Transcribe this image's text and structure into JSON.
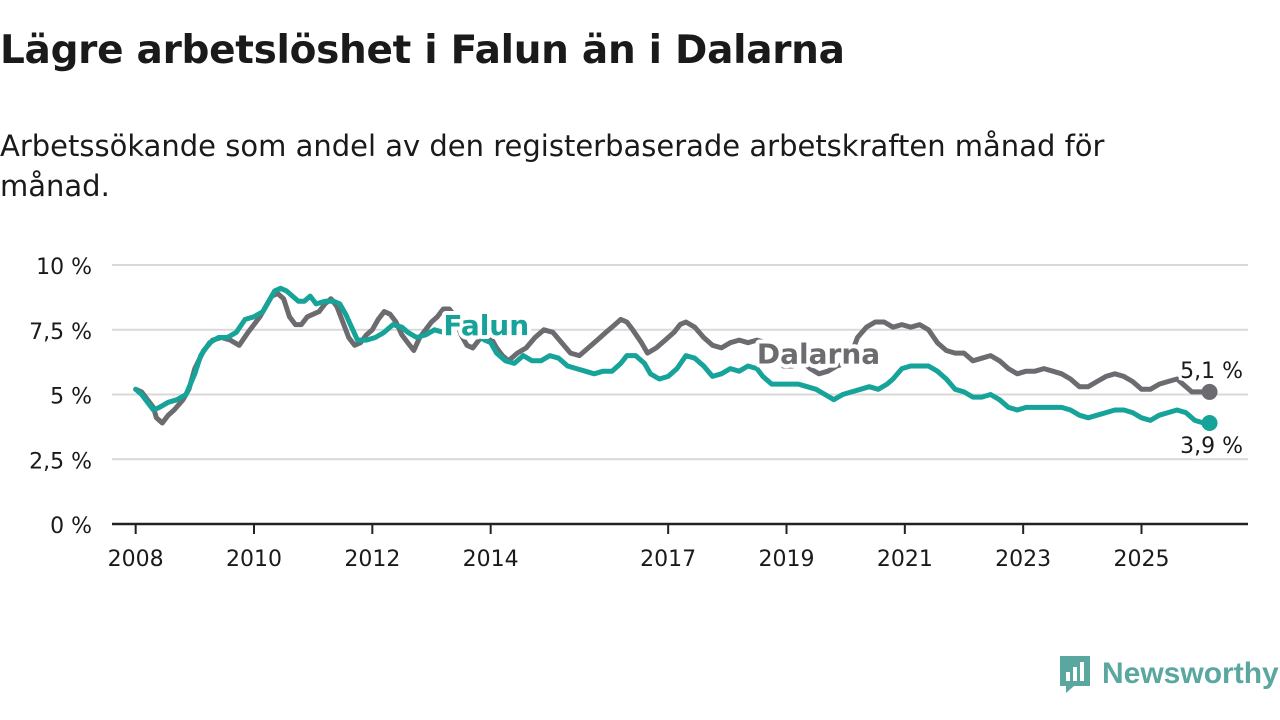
{
  "title": "Lägre arbetslöshet i Falun än i Dalarna",
  "subtitle": "Arbetssökande som andel av den registerbaserade arbetskraften månad för månad.",
  "brand": {
    "name": "Newsworthy",
    "icon": "newsworthy-logo-icon"
  },
  "colors": {
    "falun": "#16a399",
    "dalarna": "#6b6b70",
    "grid": "#d9d9d9",
    "axis": "#222222",
    "text": "#1a1a1a"
  },
  "chart_data": {
    "type": "line",
    "ylim": [
      0,
      10
    ],
    "xlim": [
      2007.6,
      2026.8
    ],
    "y_ticks": [
      {
        "value": 0,
        "label": "0 %"
      },
      {
        "value": 2.5,
        "label": "2,5 %"
      },
      {
        "value": 5,
        "label": "5 %"
      },
      {
        "value": 7.5,
        "label": "7,5 %"
      },
      {
        "value": 10,
        "label": "10 %"
      }
    ],
    "x_ticks": [
      {
        "value": 2008,
        "label": "2008"
      },
      {
        "value": 2010,
        "label": "2010"
      },
      {
        "value": 2012,
        "label": "2012"
      },
      {
        "value": 2014,
        "label": "2014"
      },
      {
        "value": 2017,
        "label": "2017"
      },
      {
        "value": 2019,
        "label": "2019"
      },
      {
        "value": 2021,
        "label": "2021"
      },
      {
        "value": 2023,
        "label": "2023"
      },
      {
        "value": 2025,
        "label": "2025"
      }
    ],
    "grid": true,
    "series": [
      {
        "name": "Dalarna",
        "color": "#6b6b70",
        "end_label": "5,1 %",
        "label_pos": [
          2018.5,
          6.2
        ],
        "points": [
          [
            2008.0,
            5.2
          ],
          [
            2008.1,
            5.1
          ],
          [
            2008.2,
            4.8
          ],
          [
            2008.3,
            4.5
          ],
          [
            2008.35,
            4.1
          ],
          [
            2008.45,
            3.9
          ],
          [
            2008.55,
            4.2
          ],
          [
            2008.65,
            4.4
          ],
          [
            2008.8,
            4.8
          ],
          [
            2008.9,
            5.2
          ],
          [
            2009.0,
            6.0
          ],
          [
            2009.15,
            6.7
          ],
          [
            2009.3,
            7.1
          ],
          [
            2009.45,
            7.2
          ],
          [
            2009.6,
            7.1
          ],
          [
            2009.75,
            6.9
          ],
          [
            2009.9,
            7.4
          ],
          [
            2010.0,
            7.7
          ],
          [
            2010.1,
            8.0
          ],
          [
            2010.2,
            8.4
          ],
          [
            2010.3,
            8.8
          ],
          [
            2010.4,
            8.9
          ],
          [
            2010.5,
            8.7
          ],
          [
            2010.6,
            8.0
          ],
          [
            2010.7,
            7.7
          ],
          [
            2010.8,
            7.7
          ],
          [
            2010.9,
            8.0
          ],
          [
            2011.0,
            8.1
          ],
          [
            2011.1,
            8.2
          ],
          [
            2011.2,
            8.5
          ],
          [
            2011.3,
            8.7
          ],
          [
            2011.4,
            8.4
          ],
          [
            2011.5,
            7.8
          ],
          [
            2011.6,
            7.2
          ],
          [
            2011.7,
            6.9
          ],
          [
            2011.8,
            7.0
          ],
          [
            2011.9,
            7.3
          ],
          [
            2012.0,
            7.5
          ],
          [
            2012.1,
            7.9
          ],
          [
            2012.2,
            8.2
          ],
          [
            2012.3,
            8.1
          ],
          [
            2012.4,
            7.8
          ],
          [
            2012.5,
            7.3
          ],
          [
            2012.6,
            7.0
          ],
          [
            2012.7,
            6.7
          ],
          [
            2012.8,
            7.2
          ],
          [
            2012.9,
            7.5
          ],
          [
            2013.0,
            7.8
          ],
          [
            2013.1,
            8.0
          ],
          [
            2013.2,
            8.3
          ],
          [
            2013.3,
            8.3
          ],
          [
            2013.4,
            8.0
          ],
          [
            2013.5,
            7.3
          ],
          [
            2013.6,
            6.9
          ],
          [
            2013.7,
            6.8
          ],
          [
            2013.8,
            7.1
          ],
          [
            2013.9,
            7.3
          ],
          [
            2014.0,
            7.2
          ],
          [
            2014.1,
            6.8
          ],
          [
            2014.2,
            6.5
          ],
          [
            2014.3,
            6.3
          ],
          [
            2014.45,
            6.6
          ],
          [
            2014.6,
            6.8
          ],
          [
            2014.75,
            7.2
          ],
          [
            2014.9,
            7.5
          ],
          [
            2015.05,
            7.4
          ],
          [
            2015.2,
            7.0
          ],
          [
            2015.35,
            6.6
          ],
          [
            2015.5,
            6.5
          ],
          [
            2015.65,
            6.8
          ],
          [
            2015.8,
            7.1
          ],
          [
            2015.95,
            7.4
          ],
          [
            2016.1,
            7.7
          ],
          [
            2016.2,
            7.9
          ],
          [
            2016.3,
            7.8
          ],
          [
            2016.4,
            7.5
          ],
          [
            2016.55,
            7.0
          ],
          [
            2016.65,
            6.6
          ],
          [
            2016.8,
            6.8
          ],
          [
            2016.95,
            7.1
          ],
          [
            2017.1,
            7.4
          ],
          [
            2017.2,
            7.7
          ],
          [
            2017.3,
            7.8
          ],
          [
            2017.45,
            7.6
          ],
          [
            2017.6,
            7.2
          ],
          [
            2017.75,
            6.9
          ],
          [
            2017.9,
            6.8
          ],
          [
            2018.05,
            7.0
          ],
          [
            2018.2,
            7.1
          ],
          [
            2018.35,
            7.0
          ],
          [
            2018.5,
            7.1
          ],
          [
            2018.65,
            7.0
          ],
          [
            2018.8,
            6.6
          ],
          [
            2018.95,
            6.1
          ],
          [
            2019.1,
            6.1
          ],
          [
            2019.25,
            6.3
          ],
          [
            2019.4,
            6.0
          ],
          [
            2019.55,
            5.8
          ],
          [
            2019.7,
            5.9
          ],
          [
            2019.85,
            6.1
          ],
          [
            2020.0,
            6.2
          ],
          [
            2020.1,
            6.6
          ],
          [
            2020.2,
            7.2
          ],
          [
            2020.35,
            7.6
          ],
          [
            2020.5,
            7.8
          ],
          [
            2020.65,
            7.8
          ],
          [
            2020.8,
            7.6
          ],
          [
            2020.95,
            7.7
          ],
          [
            2021.1,
            7.6
          ],
          [
            2021.25,
            7.7
          ],
          [
            2021.4,
            7.5
          ],
          [
            2021.55,
            7.0
          ],
          [
            2021.7,
            6.7
          ],
          [
            2021.85,
            6.6
          ],
          [
            2022.0,
            6.6
          ],
          [
            2022.15,
            6.3
          ],
          [
            2022.3,
            6.4
          ],
          [
            2022.45,
            6.5
          ],
          [
            2022.6,
            6.3
          ],
          [
            2022.75,
            6.0
          ],
          [
            2022.9,
            5.8
          ],
          [
            2023.05,
            5.9
          ],
          [
            2023.2,
            5.9
          ],
          [
            2023.35,
            6.0
          ],
          [
            2023.5,
            5.9
          ],
          [
            2023.65,
            5.8
          ],
          [
            2023.8,
            5.6
          ],
          [
            2023.95,
            5.3
          ],
          [
            2024.1,
            5.3
          ],
          [
            2024.25,
            5.5
          ],
          [
            2024.4,
            5.7
          ],
          [
            2024.55,
            5.8
          ],
          [
            2024.7,
            5.7
          ],
          [
            2024.85,
            5.5
          ],
          [
            2025.0,
            5.2
          ],
          [
            2025.15,
            5.2
          ],
          [
            2025.3,
            5.4
          ],
          [
            2025.45,
            5.5
          ],
          [
            2025.6,
            5.6
          ],
          [
            2025.75,
            5.3
          ],
          [
            2025.85,
            5.1
          ],
          [
            2026.0,
            5.1
          ],
          [
            2026.15,
            5.1
          ]
        ]
      },
      {
        "name": "Falun",
        "color": "#16a399",
        "end_label": "3,9 %",
        "label_pos": [
          2013.2,
          7.3
        ],
        "points": [
          [
            2008.0,
            5.2
          ],
          [
            2008.1,
            5.0
          ],
          [
            2008.2,
            4.7
          ],
          [
            2008.3,
            4.4
          ],
          [
            2008.4,
            4.5
          ],
          [
            2008.55,
            4.7
          ],
          [
            2008.7,
            4.8
          ],
          [
            2008.85,
            5.0
          ],
          [
            2009.0,
            5.8
          ],
          [
            2009.1,
            6.5
          ],
          [
            2009.25,
            7.0
          ],
          [
            2009.4,
            7.2
          ],
          [
            2009.55,
            7.2
          ],
          [
            2009.7,
            7.4
          ],
          [
            2009.85,
            7.9
          ],
          [
            2010.0,
            8.0
          ],
          [
            2010.15,
            8.2
          ],
          [
            2010.25,
            8.6
          ],
          [
            2010.35,
            9.0
          ],
          [
            2010.45,
            9.1
          ],
          [
            2010.55,
            9.0
          ],
          [
            2010.65,
            8.8
          ],
          [
            2010.75,
            8.6
          ],
          [
            2010.85,
            8.6
          ],
          [
            2010.95,
            8.8
          ],
          [
            2011.05,
            8.5
          ],
          [
            2011.2,
            8.6
          ],
          [
            2011.35,
            8.6
          ],
          [
            2011.45,
            8.5
          ],
          [
            2011.55,
            8.1
          ],
          [
            2011.65,
            7.6
          ],
          [
            2011.75,
            7.1
          ],
          [
            2011.9,
            7.1
          ],
          [
            2012.05,
            7.2
          ],
          [
            2012.2,
            7.4
          ],
          [
            2012.35,
            7.7
          ],
          [
            2012.5,
            7.6
          ],
          [
            2012.6,
            7.4
          ],
          [
            2012.75,
            7.2
          ],
          [
            2012.9,
            7.3
          ],
          [
            2013.05,
            7.5
          ],
          [
            2013.2,
            7.4
          ],
          [
            2013.35,
            7.6
          ],
          [
            2013.5,
            7.8
          ],
          [
            2013.6,
            7.6
          ],
          [
            2013.75,
            7.3
          ],
          [
            2013.9,
            7.1
          ],
          [
            2014.0,
            7.0
          ],
          [
            2014.1,
            6.6
          ],
          [
            2014.25,
            6.3
          ],
          [
            2014.4,
            6.2
          ],
          [
            2014.55,
            6.5
          ],
          [
            2014.7,
            6.3
          ],
          [
            2014.85,
            6.3
          ],
          [
            2015.0,
            6.5
          ],
          [
            2015.15,
            6.4
          ],
          [
            2015.3,
            6.1
          ],
          [
            2015.45,
            6.0
          ],
          [
            2015.6,
            5.9
          ],
          [
            2015.75,
            5.8
          ],
          [
            2015.9,
            5.9
          ],
          [
            2016.05,
            5.9
          ],
          [
            2016.2,
            6.2
          ],
          [
            2016.3,
            6.5
          ],
          [
            2016.45,
            6.5
          ],
          [
            2016.6,
            6.2
          ],
          [
            2016.7,
            5.8
          ],
          [
            2016.85,
            5.6
          ],
          [
            2017.0,
            5.7
          ],
          [
            2017.15,
            6.0
          ],
          [
            2017.3,
            6.5
          ],
          [
            2017.45,
            6.4
          ],
          [
            2017.6,
            6.1
          ],
          [
            2017.75,
            5.7
          ],
          [
            2017.9,
            5.8
          ],
          [
            2018.05,
            6.0
          ],
          [
            2018.2,
            5.9
          ],
          [
            2018.35,
            6.1
          ],
          [
            2018.5,
            6.0
          ],
          [
            2018.6,
            5.7
          ],
          [
            2018.75,
            5.4
          ],
          [
            2018.9,
            5.4
          ],
          [
            2019.05,
            5.4
          ],
          [
            2019.2,
            5.4
          ],
          [
            2019.35,
            5.3
          ],
          [
            2019.5,
            5.2
          ],
          [
            2019.65,
            5.0
          ],
          [
            2019.8,
            4.8
          ],
          [
            2019.95,
            5.0
          ],
          [
            2020.1,
            5.1
          ],
          [
            2020.25,
            5.2
          ],
          [
            2020.4,
            5.3
          ],
          [
            2020.55,
            5.2
          ],
          [
            2020.7,
            5.4
          ],
          [
            2020.8,
            5.6
          ],
          [
            2020.95,
            6.0
          ],
          [
            2021.1,
            6.1
          ],
          [
            2021.25,
            6.1
          ],
          [
            2021.4,
            6.1
          ],
          [
            2021.55,
            5.9
          ],
          [
            2021.7,
            5.6
          ],
          [
            2021.85,
            5.2
          ],
          [
            2022.0,
            5.1
          ],
          [
            2022.15,
            4.9
          ],
          [
            2022.3,
            4.9
          ],
          [
            2022.45,
            5.0
          ],
          [
            2022.6,
            4.8
          ],
          [
            2022.75,
            4.5
          ],
          [
            2022.9,
            4.4
          ],
          [
            2023.05,
            4.5
          ],
          [
            2023.2,
            4.5
          ],
          [
            2023.35,
            4.5
          ],
          [
            2023.5,
            4.5
          ],
          [
            2023.65,
            4.5
          ],
          [
            2023.8,
            4.4
          ],
          [
            2023.95,
            4.2
          ],
          [
            2024.1,
            4.1
          ],
          [
            2024.25,
            4.2
          ],
          [
            2024.4,
            4.3
          ],
          [
            2024.55,
            4.4
          ],
          [
            2024.7,
            4.4
          ],
          [
            2024.85,
            4.3
          ],
          [
            2025.0,
            4.1
          ],
          [
            2025.15,
            4.0
          ],
          [
            2025.3,
            4.2
          ],
          [
            2025.45,
            4.3
          ],
          [
            2025.6,
            4.4
          ],
          [
            2025.75,
            4.3
          ],
          [
            2025.9,
            4.0
          ],
          [
            2026.05,
            3.9
          ],
          [
            2026.15,
            3.9
          ]
        ]
      }
    ]
  }
}
